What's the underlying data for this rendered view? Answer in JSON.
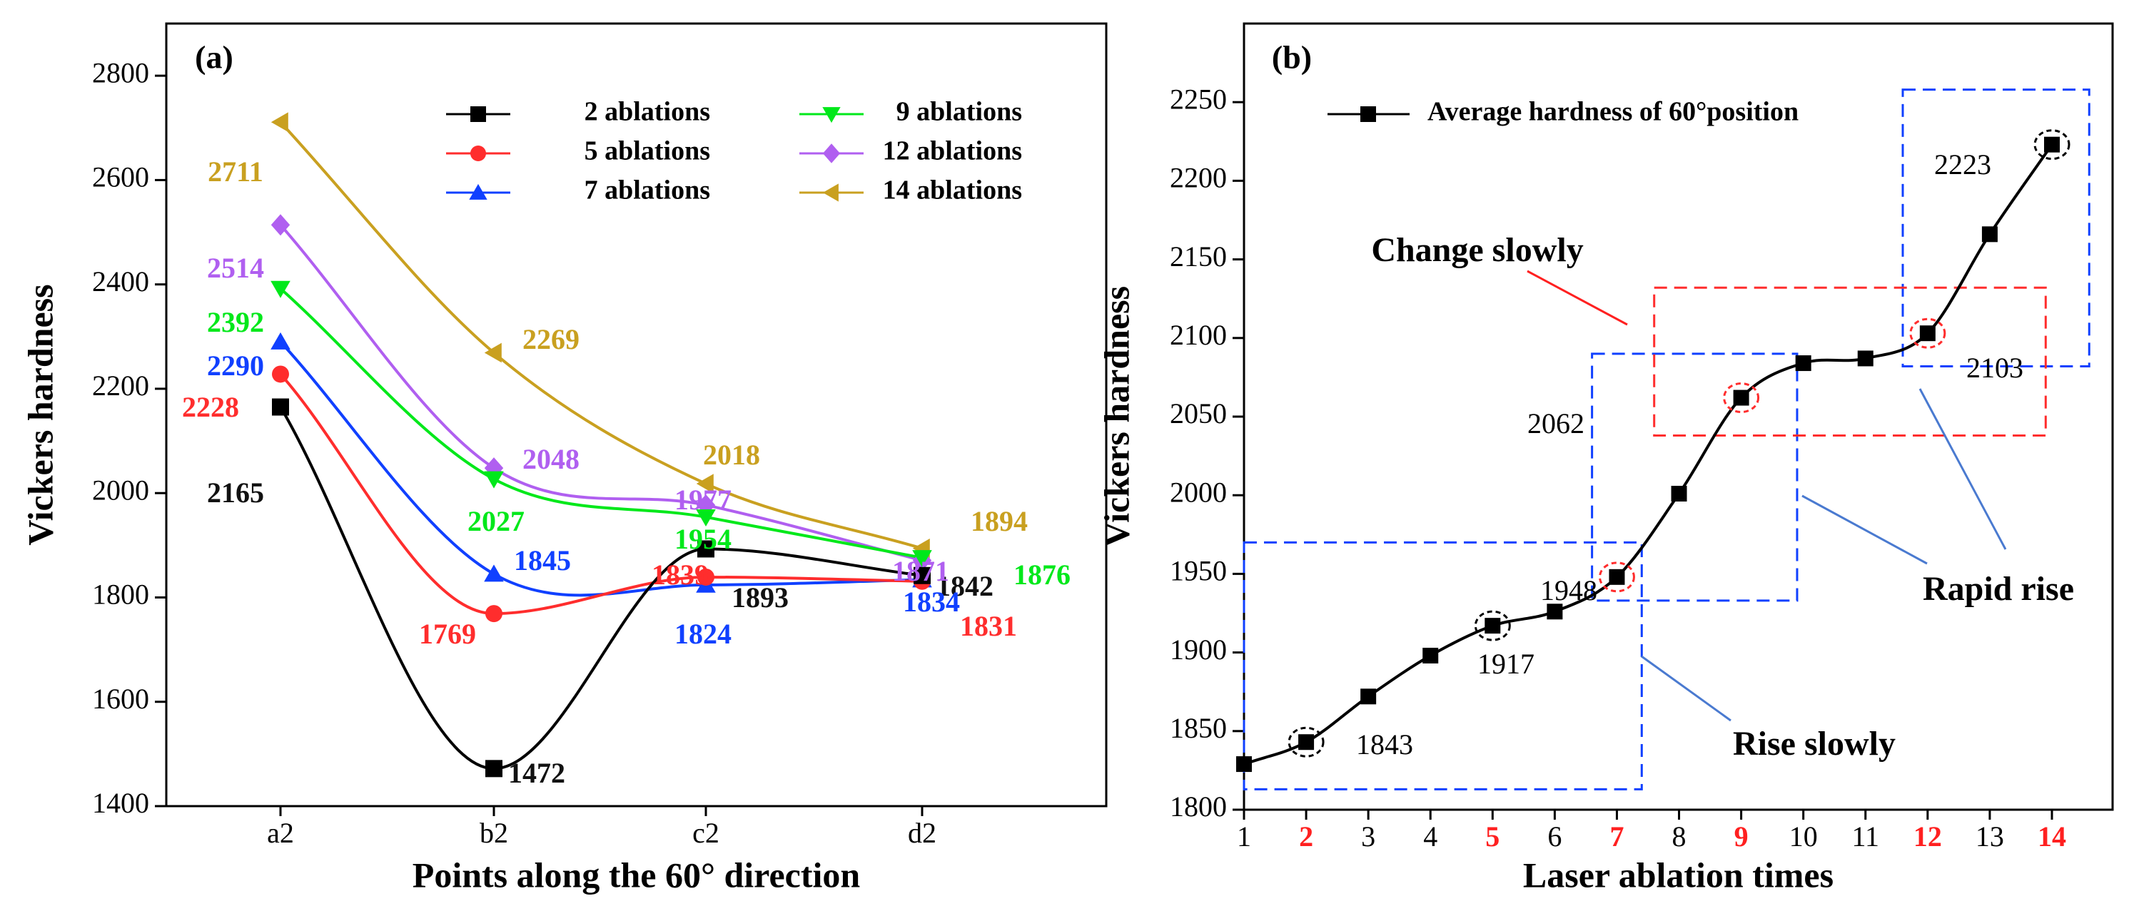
{
  "chart_data": [
    {
      "panel_label": "(a)",
      "type": "line",
      "categories": [
        "a2",
        "b2",
        "c2",
        "d2"
      ],
      "xlabel": "Points along the 60° direction",
      "ylabel": "Vickers hardness",
      "ylim": [
        1400,
        2900
      ],
      "yticks": [
        1400,
        1600,
        1800,
        2000,
        2200,
        2400,
        2600,
        2800
      ],
      "legend_placement": "top-right",
      "series": [
        {
          "name": "2 ablations",
          "marker": "square",
          "color": "#000000",
          "values": [
            2165,
            1472,
            1893,
            1842
          ],
          "labels": [
            "2165",
            "1472",
            "1893",
            "1842"
          ]
        },
        {
          "name": "5 ablations",
          "marker": "circle",
          "color": "#ff2d2d",
          "values": [
            2228,
            1769,
            1839,
            1831
          ],
          "labels": [
            "2228",
            "1769",
            "1839",
            "1831"
          ]
        },
        {
          "name": "7 ablations",
          "marker": "triangle-up",
          "color": "#1040ff",
          "values": [
            2290,
            1845,
            1824,
            1834
          ],
          "labels": [
            "2290",
            "1845",
            "1824",
            "1834"
          ]
        },
        {
          "name": "9 ablations",
          "marker": "triangle-down",
          "color": "#00e81a",
          "values": [
            2392,
            2027,
            1954,
            1876
          ],
          "labels": [
            "2392",
            "2027",
            "1954",
            "1876"
          ]
        },
        {
          "name": "12 ablations",
          "marker": "diamond",
          "color": "#b05ff0",
          "values": [
            2514,
            2048,
            1977,
            1871
          ],
          "labels": [
            "2514",
            "2048",
            "1977",
            "1871"
          ]
        },
        {
          "name": "14 ablations",
          "marker": "triangle-left",
          "color": "#c9a020",
          "values": [
            2711,
            2269,
            2018,
            1894
          ],
          "labels": [
            "2711",
            "2269",
            "2018",
            "1894"
          ]
        }
      ]
    },
    {
      "panel_label": "(b)",
      "type": "line",
      "xlabel": "Laser ablation times",
      "ylabel": "Vickers hardness",
      "xlim": [
        1,
        14
      ],
      "ylim": [
        1800,
        2300
      ],
      "xticks": [
        1,
        2,
        3,
        4,
        5,
        6,
        7,
        8,
        9,
        10,
        11,
        12,
        13,
        14
      ],
      "xticks_highlighted": [
        2,
        5,
        7,
        9,
        12,
        14
      ],
      "yticks": [
        1800,
        1850,
        1900,
        1950,
        2000,
        2050,
        2100,
        2150,
        2200,
        2250
      ],
      "legend_placement": "top-left",
      "series": [
        {
          "name": "Average hardness of 60°position",
          "marker": "square",
          "color": "#000000",
          "x": [
            1,
            2,
            3,
            4,
            5,
            6,
            7,
            8,
            9,
            10,
            11,
            12,
            13,
            14
          ],
          "y": [
            1829,
            1843,
            1872,
            1898,
            1917,
            1926,
            1948,
            2001,
            2062,
            2084,
            2087,
            2103,
            2166,
            2223
          ]
        }
      ],
      "point_labels": [
        {
          "x": 2,
          "y": 1843,
          "text": "1843",
          "circle_color": "#000000"
        },
        {
          "x": 5,
          "y": 1917,
          "text": "1917",
          "circle_color": "#000000"
        },
        {
          "x": 7,
          "y": 1948,
          "text": "1948",
          "circle_color": "#ff2d2d"
        },
        {
          "x": 9,
          "y": 2062,
          "text": "2062",
          "circle_color": "#ff2d2d"
        },
        {
          "x": 12,
          "y": 2103,
          "text": "2103",
          "circle_color": "#ff2d2d"
        },
        {
          "x": 14,
          "y": 2223,
          "text": "2223",
          "circle_color": "#000000"
        }
      ],
      "annotations": [
        {
          "text": "Change slowly",
          "box_color": "#ff2d2d"
        },
        {
          "text": "Rapid rise",
          "box_color": "#1040ff"
        },
        {
          "text": "Rise slowly",
          "box_color": "#1040ff"
        }
      ]
    }
  ]
}
